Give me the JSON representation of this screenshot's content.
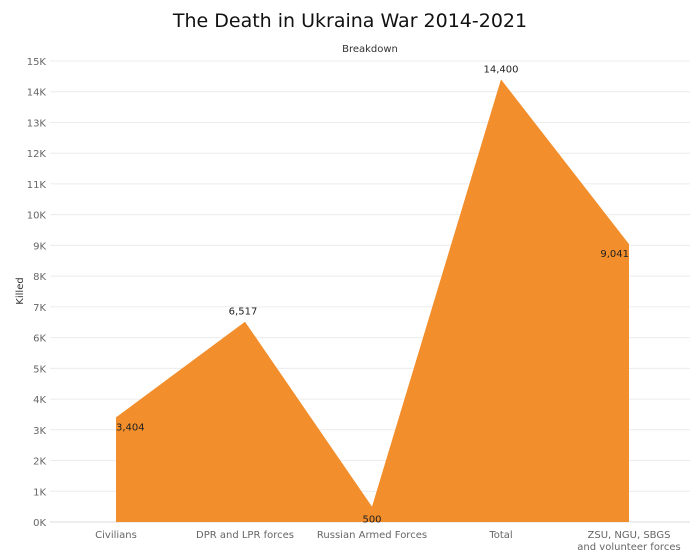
{
  "chart_data": {
    "type": "area",
    "title": "The Death in Ukraina War 2014-2021",
    "column_header": "Breakdown",
    "xlabel": "",
    "ylabel": "Killed",
    "categories": [
      "Civilians",
      "DPR and LPR forces",
      "Russian Armed Forces",
      "Total",
      "ZSU, NGU, SBGS\nand volunteer forces"
    ],
    "values": [
      3404,
      6517,
      500,
      14400,
      9041
    ],
    "data_labels": [
      "3,404",
      "6,517",
      "500",
      "14,400",
      "9,041"
    ],
    "ylim": [
      0,
      15000
    ],
    "y_ticks": [
      0,
      1000,
      2000,
      3000,
      4000,
      5000,
      6000,
      7000,
      8000,
      9000,
      10000,
      11000,
      12000,
      13000,
      14000,
      15000
    ],
    "y_tick_labels": [
      "0K",
      "1K",
      "2K",
      "3K",
      "4K",
      "5K",
      "6K",
      "7K",
      "8K",
      "9K",
      "10K",
      "11K",
      "12K",
      "13K",
      "14K",
      "15K"
    ],
    "grid": true,
    "fill_color": "#F28E2B"
  }
}
